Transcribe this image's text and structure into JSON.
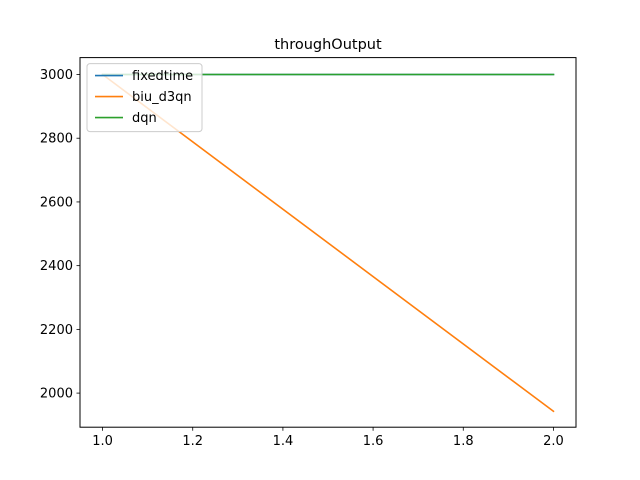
{
  "chart_data": {
    "type": "line",
    "title": "throughOutput",
    "xlabel": "",
    "ylabel": "",
    "xlim": [
      0.95,
      2.05
    ],
    "ylim": [
      1893,
      3053
    ],
    "xticks": [
      1.0,
      1.2,
      1.4,
      1.6,
      1.8,
      2.0
    ],
    "xtick_labels": [
      "1.0",
      "1.2",
      "1.4",
      "1.6",
      "1.8",
      "2.0"
    ],
    "yticks": [
      2000,
      2200,
      2400,
      2600,
      2800,
      3000
    ],
    "ytick_labels": [
      "2000",
      "2200",
      "2400",
      "2600",
      "2800",
      "3000"
    ],
    "grid": false,
    "legend_position": "top-left",
    "series": [
      {
        "name": "fixedtime",
        "color": "#1f77b4",
        "x": [
          1,
          2
        ],
        "y": [
          3000,
          3000
        ]
      },
      {
        "name": "biu_d3qn",
        "color": "#ff7f0e",
        "x": [
          1,
          2
        ],
        "y": [
          3000,
          1943
        ]
      },
      {
        "name": "dqn",
        "color": "#2ca02c",
        "x": [
          1,
          2
        ],
        "y": [
          3000,
          3000
        ]
      }
    ]
  }
}
